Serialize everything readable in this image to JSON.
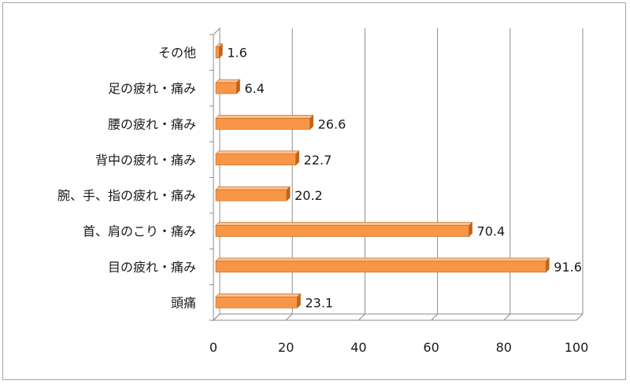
{
  "chart_data": {
    "type": "bar",
    "orientation": "horizontal",
    "style": "3d",
    "categories": [
      "頭痛",
      "目の疲れ・痛み",
      "首、肩のこり・痛み",
      "腕、手、指の疲れ・痛み",
      "背中の疲れ・痛み",
      "腰の疲れ・痛み",
      "足の疲れ・痛み",
      "その他"
    ],
    "values": [
      23.1,
      91.6,
      70.4,
      20.2,
      22.7,
      26.6,
      6.4,
      1.6
    ],
    "value_labels": [
      "23.1",
      "91.6",
      "70.4",
      "20.2",
      "22.7",
      "26.6",
      "6.4",
      "1.6"
    ],
    "xlim": [
      0,
      100
    ],
    "xticks": [
      "0",
      "20",
      "40",
      "60",
      "80",
      "100"
    ],
    "grid": true,
    "bar_color": "#f79646",
    "bar_color_dark": "#c0641a",
    "bar_color_light": "#fbc08e"
  }
}
